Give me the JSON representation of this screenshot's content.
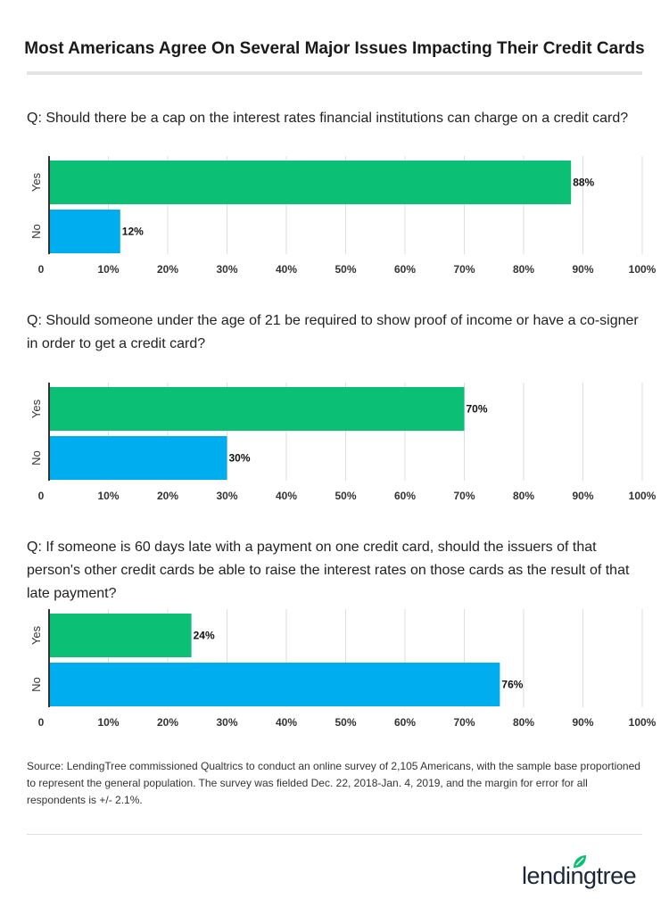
{
  "title": "Most Americans Agree On Several Major Issues Impacting Their Credit Cards",
  "colors": {
    "yes": "#0bbf74",
    "no": "#00aeef",
    "axis": "#333333",
    "grid": "#dddddd"
  },
  "chart_data": [
    {
      "type": "bar",
      "orientation": "horizontal",
      "question": "Q: Should there be a cap on the interest rates financial institutions can charge on a credit card?",
      "categories": [
        "Yes",
        "No"
      ],
      "values": [
        88,
        12
      ],
      "labels": [
        "88%",
        "12%"
      ],
      "xlim": [
        0,
        100
      ],
      "ticks": [
        "0",
        "10%",
        "20%",
        "30%",
        "40%",
        "50%",
        "60%",
        "70%",
        "80%",
        "90%",
        "100%"
      ],
      "grid": true
    },
    {
      "type": "bar",
      "orientation": "horizontal",
      "question": "Q: Should someone under the age of 21 be required to show proof of income or have a co-signer in order to get a credit card?",
      "categories": [
        "Yes",
        "No"
      ],
      "values": [
        70,
        30
      ],
      "labels": [
        "70%",
        "30%"
      ],
      "xlim": [
        0,
        100
      ],
      "ticks": [
        "0",
        "10%",
        "20%",
        "30%",
        "40%",
        "50%",
        "60%",
        "70%",
        "80%",
        "90%",
        "100%"
      ],
      "grid": true
    },
    {
      "type": "bar",
      "orientation": "horizontal",
      "question": "Q: If someone is 60 days late with a payment on one credit card, should the issuers of that person's other credit cards be able to raise the interest rates on those cards as the result of that late payment?",
      "categories": [
        "Yes",
        "No"
      ],
      "values": [
        24,
        76
      ],
      "labels": [
        "24%",
        "76%"
      ],
      "xlim": [
        0,
        100
      ],
      "ticks": [
        "0",
        "10%",
        "20%",
        "30%",
        "40%",
        "50%",
        "60%",
        "70%",
        "80%",
        "90%",
        "100%"
      ],
      "grid": true
    }
  ],
  "source": "Source: LendingTree commissioned Qualtrics to conduct an online survey of 2,105 Americans, with the sample base proportioned to represent the general population. The survey was fielded Dec. 22, 2018-Jan. 4, 2019, and the margin for error for all respondents is +/- 2.1%.",
  "logo": "lendingtree"
}
